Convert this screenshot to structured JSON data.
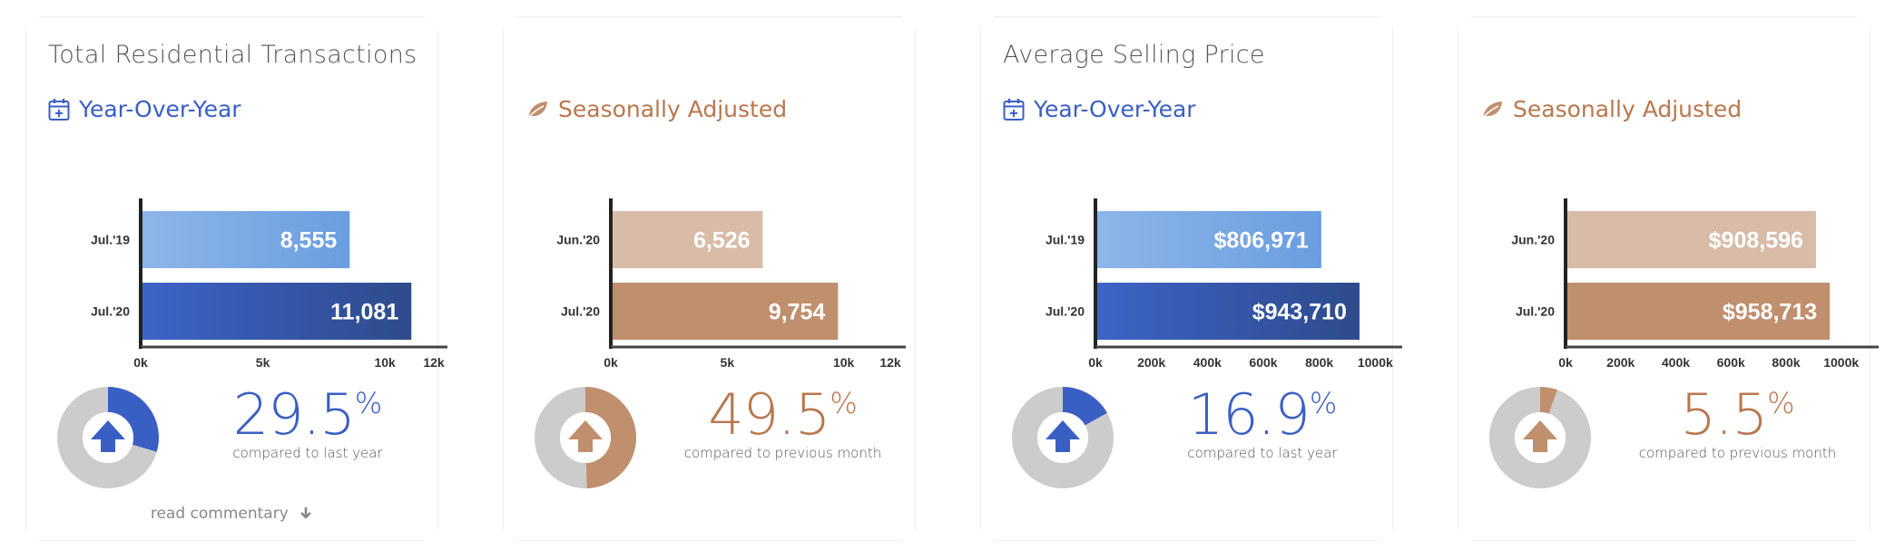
{
  "colors": {
    "blue": "#3a5fc4",
    "blue_light_start": "#8db6e8",
    "blue_light_end": "#6a9de0",
    "blue_dark_start": "#3c64c8",
    "blue_dark_end": "#2f4b8c",
    "tan_light": "#d8bca8",
    "tan_dark": "#c08f6e",
    "orange_text": "#b9774f",
    "donut_gray": "#cccccc"
  },
  "panels": [
    {
      "title": "Total Residential Transactions",
      "subtitle": "Year-Over-Year",
      "icon": "calendar-plus-icon",
      "theme": "blue",
      "percent": "29.5",
      "percent_symbol": "%",
      "compare": "compared to last year",
      "commentary": "read commentary"
    },
    {
      "title": "",
      "subtitle": "Seasonally Adjusted",
      "icon": "leaf-icon",
      "theme": "tan",
      "percent": "49.5",
      "percent_symbol": "%",
      "compare": "compared to previous month"
    },
    {
      "title": "Average Selling Price",
      "subtitle": "Year-Over-Year",
      "icon": "calendar-plus-icon",
      "theme": "blue",
      "percent": "16.9",
      "percent_symbol": "%",
      "compare": "compared to last year"
    },
    {
      "title": "",
      "subtitle": "Seasonally Adjusted",
      "icon": "leaf-icon",
      "theme": "tan",
      "percent": "5.5",
      "percent_symbol": "%",
      "compare": "compared to previous month"
    }
  ],
  "chart_data": [
    {
      "type": "bar",
      "orientation": "horizontal",
      "categories": [
        "Jul.'19",
        "Jul.'20"
      ],
      "values": [
        8555,
        11081
      ],
      "value_labels": [
        "8,555",
        "11,081"
      ],
      "xlim": [
        0,
        12000
      ],
      "x_ticks": [
        0,
        5000,
        10000,
        12000
      ],
      "x_tick_labels": [
        "0k",
        "5k",
        "10k",
        "12k"
      ],
      "donut_percent": 29.5
    },
    {
      "type": "bar",
      "orientation": "horizontal",
      "categories": [
        "Jun.'20",
        "Jul.'20"
      ],
      "values": [
        6526,
        9754
      ],
      "value_labels": [
        "6,526",
        "9,754"
      ],
      "xlim": [
        0,
        12000
      ],
      "x_ticks": [
        0,
        5000,
        10000,
        12000
      ],
      "x_tick_labels": [
        "0k",
        "5k",
        "10k",
        "12k"
      ],
      "donut_percent": 49.5
    },
    {
      "type": "bar",
      "orientation": "horizontal",
      "categories": [
        "Jul.'19",
        "Jul.'20"
      ],
      "values": [
        806971,
        943710
      ],
      "value_labels": [
        "$806,971",
        "$943,710"
      ],
      "xlim": [
        0,
        1080000
      ],
      "x_ticks": [
        0,
        200000,
        400000,
        600000,
        800000,
        1000000
      ],
      "x_tick_labels": [
        "0k",
        "200k",
        "400k",
        "600k",
        "800k",
        "1000k"
      ],
      "donut_percent": 16.9
    },
    {
      "type": "bar",
      "orientation": "horizontal",
      "categories": [
        "Jun.'20",
        "Jul.'20"
      ],
      "values": [
        908596,
        958713
      ],
      "value_labels": [
        "$908,596",
        "$958,713"
      ],
      "xlim": [
        0,
        1080000
      ],
      "x_ticks": [
        0,
        200000,
        400000,
        600000,
        800000,
        1000000
      ],
      "x_tick_labels": [
        "0k",
        "200k",
        "400k",
        "600k",
        "800k",
        "1000k"
      ],
      "donut_percent": 5.5
    }
  ]
}
